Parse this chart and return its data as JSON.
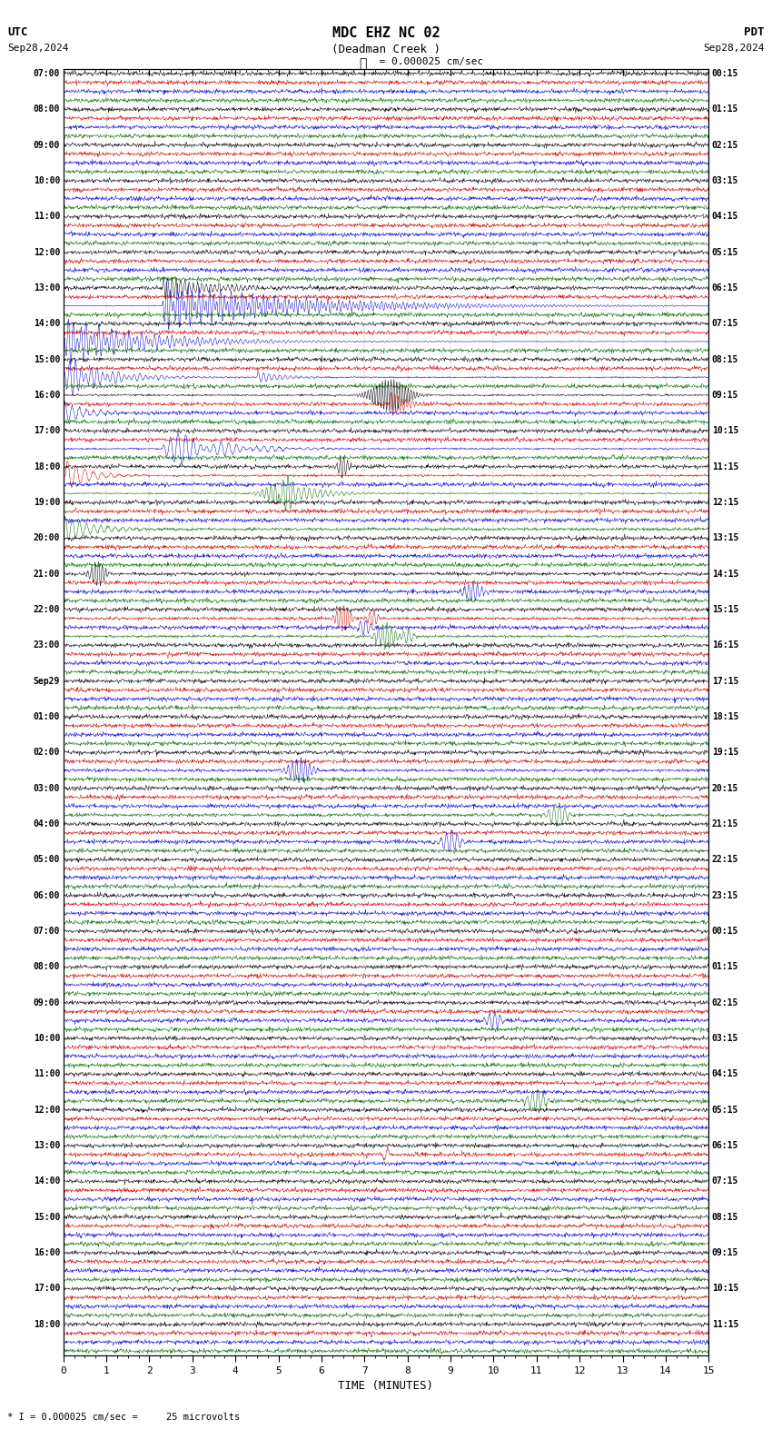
{
  "title_line1": "MDC EHZ NC 02",
  "title_line2": "(Deadman Creek )",
  "scale_label": "= 0.000025 cm/sec",
  "utc_label": "UTC",
  "pdt_label": "PDT",
  "date_left": "Sep28,2024",
  "date_right": "Sep28,2024",
  "xlabel": "TIME (MINUTES)",
  "footer": "* I = 0.000025 cm/sec =     25 microvolts",
  "bg_color": "#ffffff",
  "trace_colors": [
    "#000000",
    "#cc0000",
    "#0000cc",
    "#006600"
  ],
  "n_groups": 36,
  "minutes_per_row": 15,
  "left_times_utc": [
    "07:00",
    "08:00",
    "09:00",
    "10:00",
    "11:00",
    "12:00",
    "13:00",
    "14:00",
    "15:00",
    "16:00",
    "17:00",
    "18:00",
    "19:00",
    "20:00",
    "21:00",
    "22:00",
    "23:00",
    "Sep29",
    "01:00",
    "02:00",
    "03:00",
    "04:00",
    "05:00",
    "06:00",
    "07:00",
    "08:00",
    "09:00",
    "10:00",
    "11:00",
    "12:00",
    "13:00",
    "14:00",
    "15:00",
    "16:00",
    "17:00",
    "18:00"
  ],
  "right_times_pdt": [
    "00:15",
    "01:15",
    "02:15",
    "03:15",
    "04:15",
    "05:15",
    "06:15",
    "07:15",
    "08:15",
    "09:15",
    "10:15",
    "11:15",
    "12:15",
    "13:15",
    "14:15",
    "15:15",
    "16:15",
    "17:15",
    "18:15",
    "19:15",
    "20:15",
    "21:15",
    "22:15",
    "23:15",
    "00:15",
    "01:15",
    "02:15",
    "03:15",
    "04:15",
    "05:15",
    "06:15",
    "07:15",
    "08:15",
    "09:15",
    "10:15",
    "11:15"
  ],
  "seed": 12345,
  "noise_amp": 0.28
}
